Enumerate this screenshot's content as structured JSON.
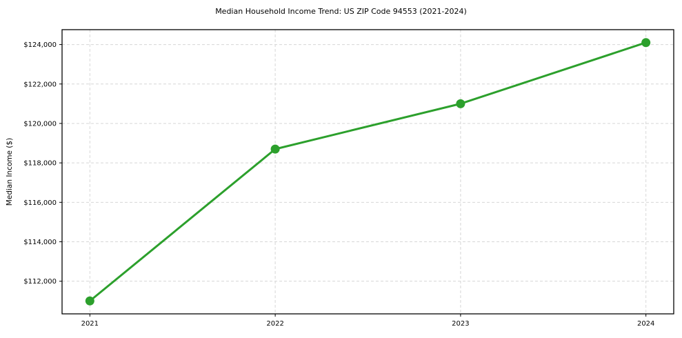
{
  "chart_data": {
    "type": "line",
    "title": "Median Household Income Trend: US ZIP Code 94553 (2021-2024)",
    "xlabel": "",
    "ylabel": "Median Income ($)",
    "x": [
      2021,
      2022,
      2023,
      2024
    ],
    "xtick_labels": [
      "2021",
      "2022",
      "2023",
      "2024"
    ],
    "yticks": [
      112000,
      114000,
      116000,
      118000,
      120000,
      122000,
      124000
    ],
    "ytick_labels": [
      "$112,000",
      "$114,000",
      "$116,000",
      "$118,000",
      "$120,000",
      "$122,000",
      "$124,000"
    ],
    "series": [
      {
        "name": "Median Household Income",
        "values": [
          111000,
          118700,
          121000,
          124100
        ]
      }
    ],
    "xlim": [
      2020.85,
      2024.15
    ],
    "ylim": [
      110345,
      124755
    ],
    "grid": true,
    "legend": "none",
    "line_color": "#2ca02c",
    "marker": "circle",
    "marker_radius": 6.5,
    "grid_color": "#d6d6d6",
    "frame_color": "#000000",
    "background_color": "#ffffff"
  }
}
